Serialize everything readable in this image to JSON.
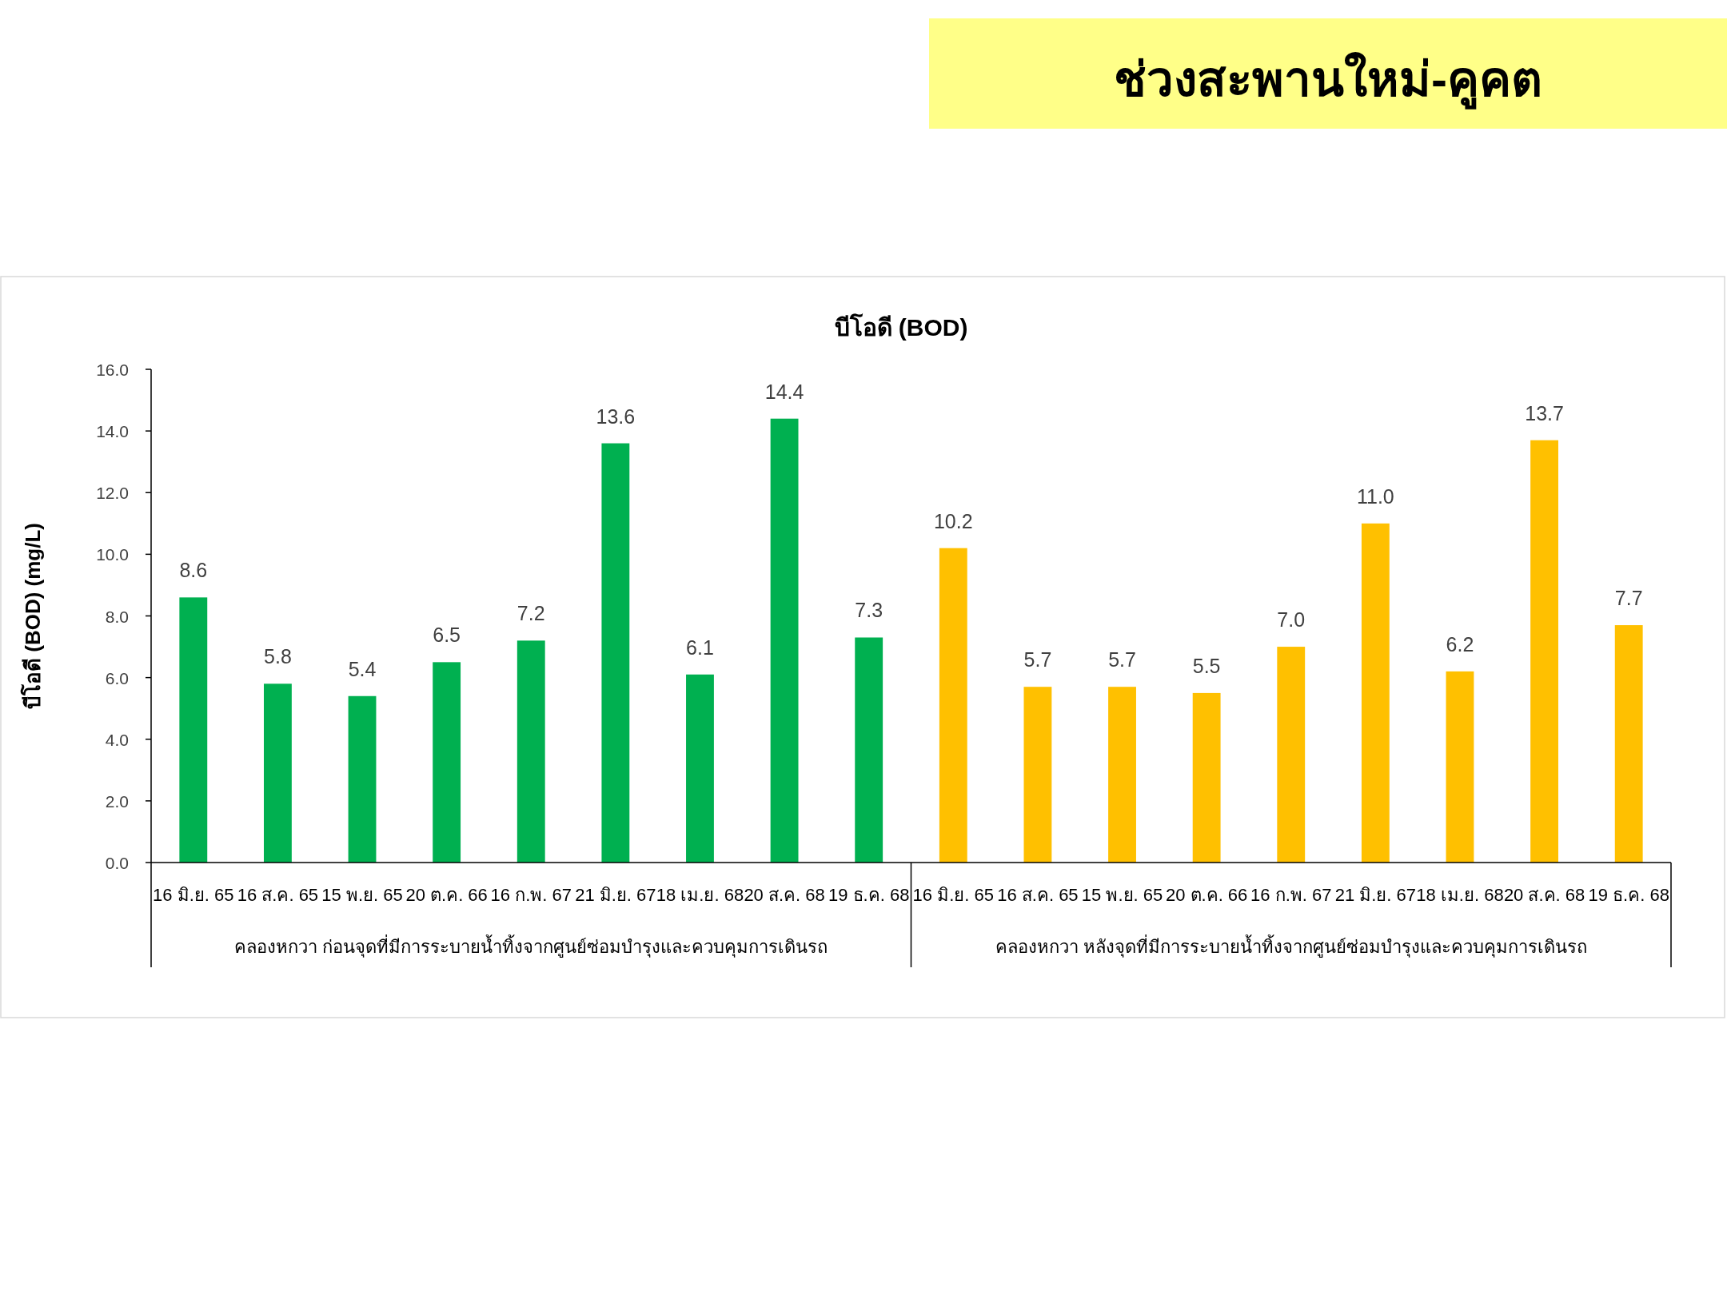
{
  "chart_data": {
    "type": "bar",
    "title": "ช่วงสะพานใหม่-คูคต",
    "subtitle": "บีโอดี (BOD)",
    "ylabel": "บีโอดี (BOD) (mg/L)",
    "categories": [
      "16 มิ.ย. 65",
      "16 ส.ค. 65",
      "15 พ.ย. 65",
      "20 ต.ค. 66",
      "16 ก.พ. 67",
      "21 มิ.ย. 67",
      "18 เม.ย. 68",
      "20 ส.ค. 68",
      "19 ธ.ค. 68",
      "16 มิ.ย. 65",
      "16 ส.ค. 65",
      "15 พ.ย. 65",
      "20 ต.ค. 66",
      "16 ก.พ. 67",
      "21 มิ.ย. 67",
      "18 เม.ย. 68",
      "20 ส.ค. 68",
      "19 ธ.ค. 68"
    ],
    "series": [
      {
        "color": "#00b050",
        "values": [
          8.6,
          5.8,
          5.4,
          6.5,
          7.2,
          13.6,
          6.1,
          14.4,
          7.3,
          null,
          null,
          null,
          null,
          null,
          null,
          null,
          null,
          null
        ],
        "value_labels": [
          "8.6",
          "5.8",
          "5.4",
          "6.5",
          "7.2",
          "13.6",
          "6.1",
          "14.4",
          "7.3",
          null,
          null,
          null,
          null,
          null,
          null,
          null,
          null,
          null
        ]
      },
      {
        "color": "#ffc000",
        "values": [
          null,
          null,
          null,
          null,
          null,
          null,
          null,
          null,
          null,
          10.2,
          5.7,
          5.7,
          5.5,
          7.0,
          11.0,
          6.2,
          13.7,
          7.7
        ],
        "value_labels": [
          null,
          null,
          null,
          null,
          null,
          null,
          null,
          null,
          null,
          "10.2",
          "5.7",
          "5.7",
          "5.5",
          "7.0",
          "11.0",
          "6.2",
          "13.7",
          "7.7"
        ]
      }
    ],
    "ylim": [
      0,
      16
    ],
    "yticks": [
      {
        "value": 0,
        "label": "0.0"
      },
      {
        "value": 2,
        "label": "2.0"
      },
      {
        "value": 4,
        "label": "4.0"
      },
      {
        "value": 6,
        "label": "6.0"
      },
      {
        "value": 8,
        "label": "8.0"
      },
      {
        "value": 10,
        "label": "10.0"
      },
      {
        "value": 12,
        "label": "12.0"
      },
      {
        "value": 14,
        "label": "14.0"
      },
      {
        "value": 16,
        "label": "16.0"
      }
    ],
    "annotations": [
      "คลองหกวา ก่อนจุดที่มีการระบายน้ำทิ้งจากศูนย์ซ่อมบำรุงและควบคุมการเดินรถ",
      "คลองหกวา หลังจุดที่มีการระบายน้ำทิ้งจากศูนย์ซ่อมบำรุงและควบคุมการเดินรถ"
    ],
    "grid": false
  }
}
